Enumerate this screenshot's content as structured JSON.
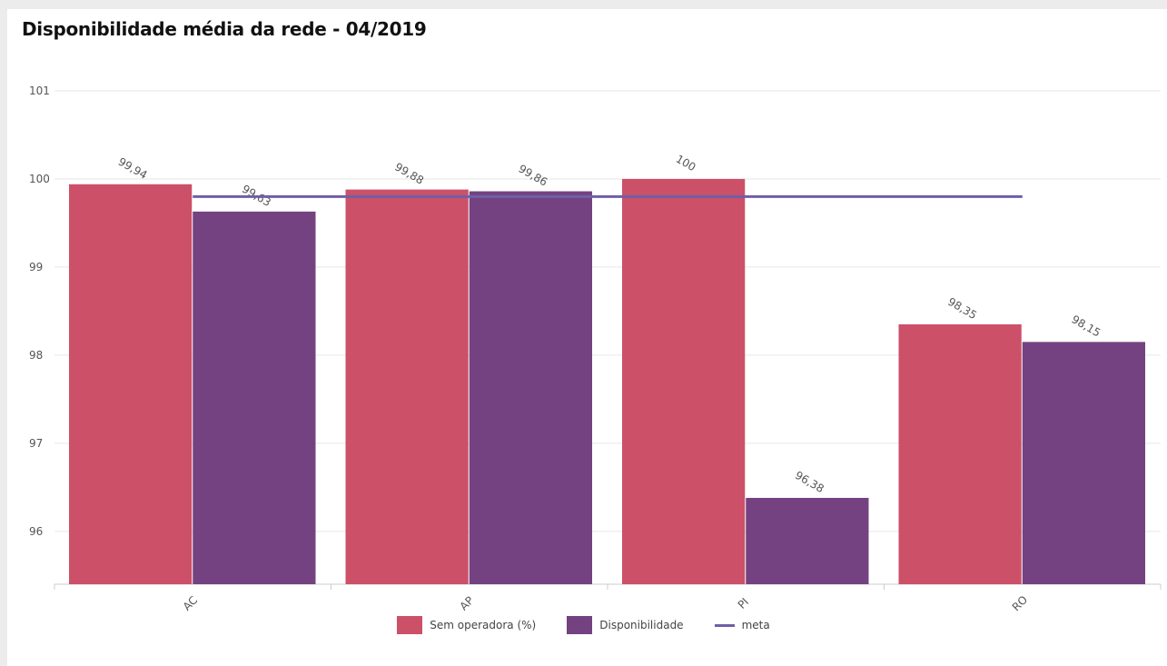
{
  "title": "Disponibilidade média da rede - 04/2019",
  "colors": {
    "sem_operadora": "#cc5068",
    "disponibilidade": "#744281",
    "meta": "#6f5fa6",
    "grid": "#e6e6e6",
    "axis": "#cccccc",
    "text": "#555555"
  },
  "legend": {
    "sem_operadora": "Sem operadora (%)",
    "disponibilidade": "Disponibilidade",
    "meta": "meta"
  },
  "chart_data": {
    "type": "bar",
    "title": "Disponibilidade média da rede - 04/2019",
    "categories": [
      "AC",
      "AP",
      "PI",
      "RO"
    ],
    "series": [
      {
        "name": "Sem operadora (%)",
        "values": [
          99.94,
          99.88,
          100,
          98.35
        ],
        "labels": [
          "99,94",
          "99,88",
          "100",
          "98,35"
        ]
      },
      {
        "name": "Disponibilidade",
        "values": [
          99.63,
          99.86,
          96.38,
          98.15
        ],
        "labels": [
          "99,63",
          "99,86",
          "96,38",
          "98,15"
        ]
      }
    ],
    "meta": {
      "name": "meta",
      "value": 99.8
    },
    "ylim": [
      95.4,
      101
    ],
    "yticks": [
      96,
      97,
      98,
      99,
      100,
      101
    ],
    "xlabel": "",
    "ylabel": "",
    "grid": true,
    "legend_position": "bottom"
  }
}
